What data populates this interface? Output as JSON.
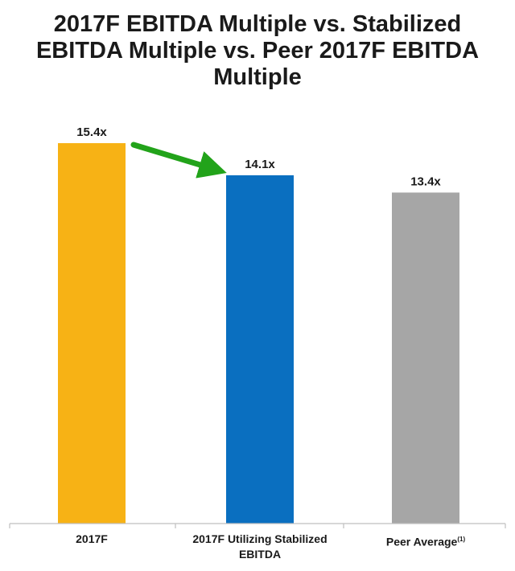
{
  "title_lines": [
    "2017F EBITDA Multiple vs. Stabilized",
    "EBITDA Multiple vs. Peer 2017F EBITDA",
    "Multiple"
  ],
  "chart_data": {
    "type": "bar",
    "title": "2017F EBITDA Multiple vs. Stabilized EBITDA Multiple vs. Peer 2017F EBITDA Multiple",
    "categories": [
      "2017F",
      "2017F Utilizing Stabilized EBITDA",
      "Peer Average"
    ],
    "category_lines": [
      [
        "2017F"
      ],
      [
        "2017F Utilizing Stabilized",
        "EBITDA"
      ],
      [
        "Peer Average"
      ]
    ],
    "category_footnotes": [
      "",
      "",
      "(1)"
    ],
    "values": [
      15.4,
      14.1,
      13.4
    ],
    "value_labels": [
      "15.4x",
      "14.1x",
      "13.4x"
    ],
    "colors": [
      "#f7b215",
      "#0a6fc0",
      "#a6a6a6"
    ],
    "annotation": {
      "type": "arrow",
      "from": "2017F",
      "to": "2017F Utilizing Stabilized EBITDA",
      "color": "#22a31a"
    },
    "xlabel": "",
    "ylabel": "",
    "ylim": [
      0,
      15.4
    ],
    "grid": false,
    "legend": "none"
  }
}
